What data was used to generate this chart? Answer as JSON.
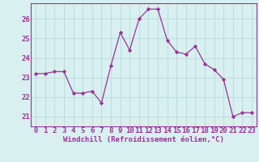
{
  "x": [
    0,
    1,
    2,
    3,
    4,
    5,
    6,
    7,
    8,
    9,
    10,
    11,
    12,
    13,
    14,
    15,
    16,
    17,
    18,
    19,
    20,
    21,
    22,
    23
  ],
  "y": [
    23.2,
    23.2,
    23.3,
    23.3,
    22.2,
    22.2,
    22.3,
    21.7,
    23.6,
    25.3,
    24.4,
    26.0,
    26.5,
    26.5,
    24.9,
    24.3,
    24.2,
    24.6,
    23.7,
    23.4,
    22.9,
    21.0,
    21.2,
    21.2
  ],
  "line_color": "#993399",
  "marker": "D",
  "marker_size": 2.2,
  "bg_color": "#d8f0f0",
  "grid_color": "#c0dede",
  "xlabel": "Windchill (Refroidissement éolien,°C)",
  "xlabel_color": "#993399",
  "tick_color": "#993399",
  "ylim": [
    20.5,
    26.8
  ],
  "xlim": [
    -0.5,
    23.5
  ],
  "yticks": [
    21,
    22,
    23,
    24,
    25,
    26
  ],
  "xticks": [
    0,
    1,
    2,
    3,
    4,
    5,
    6,
    7,
    8,
    9,
    10,
    11,
    12,
    13,
    14,
    15,
    16,
    17,
    18,
    19,
    20,
    21,
    22,
    23
  ],
  "tick_fontsize": 6.5,
  "xlabel_fontsize": 6.5
}
